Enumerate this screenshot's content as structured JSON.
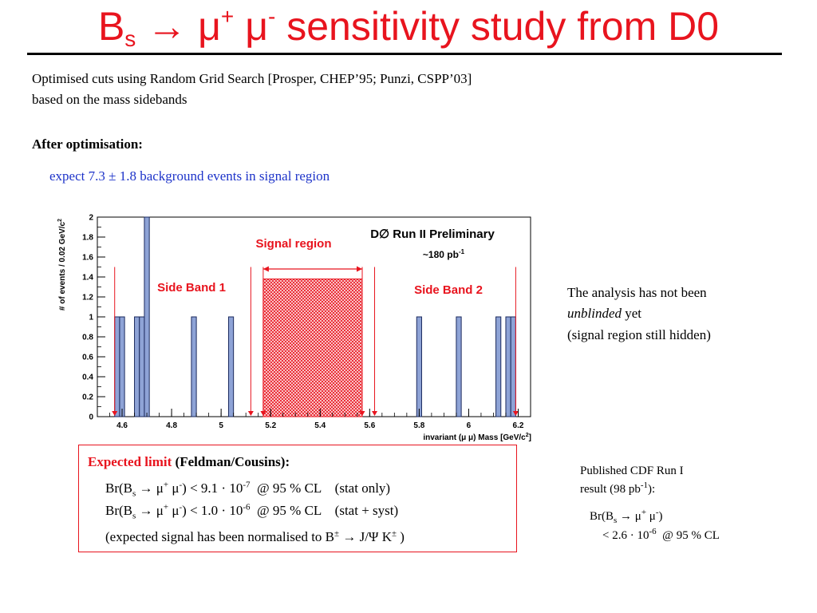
{
  "slide": {
    "title": {
      "b": "B",
      "s": "s",
      "arrow": "→",
      "mu_plus": "μ",
      "plus": "+",
      "mu_minus": "μ",
      "minus": "-",
      "rest": "sensitivity study from D0"
    },
    "intro_line1": "Optimised cuts using Random Grid Search [Prosper, CHEP’95; Punzi, CSPP’03]",
    "intro_line2": "based on the mass sidebands",
    "after_heading": "After optimisation:",
    "expect_line": "expect 7.3 ± 1.8 background events in signal region",
    "analysis_note": {
      "line1": "The analysis has not been",
      "line2_italic": "unblinded",
      "line2_rest": " yet",
      "line3": "(signal region still hidden)"
    },
    "expected_limit": {
      "label": "Expected limit",
      "method": "(Feldman/Cousins):",
      "row1": {
        "pre": "Br(B",
        "sub": "s",
        "mid": " → μ",
        "plus": "+",
        "mid2": " μ",
        "minus": "-",
        "post": ") < 9.1 · 10",
        "exp": "-7",
        "tail": "  @ 95 % CL    (stat only)"
      },
      "row2": {
        "pre": "Br(B",
        "sub": "s",
        "mid": " → μ",
        "plus": "+",
        "mid2": " μ",
        "minus": "-",
        "post": ") < 1.0 · 10",
        "exp": "-6",
        "tail": "  @ 95 % CL    (stat + syst)"
      },
      "row3": {
        "pre": "(expected signal has been normalised to B",
        "pm1": "±",
        "mid": " → J/Ψ K",
        "pm2": "±",
        "post": " )"
      }
    },
    "cdf": {
      "line1": "Published CDF Run I",
      "line2_pre": "result (98 pb",
      "line2_exp": "-1",
      "line2_post": "):",
      "br": {
        "pre": "Br(B",
        "sub": "s",
        "mid": " → μ",
        "plus": "+",
        "mid2": " μ",
        "minus": "-",
        "post": ")"
      },
      "limit": {
        "pre": "< 2.6 · 10",
        "exp": "-6",
        "post": "  @ 95 % CL"
      }
    }
  },
  "chart_data": {
    "type": "bar",
    "ylabel": "# of events / 0.02 GeV/c",
    "ylabel_exp": "2",
    "xlabel": "invariant (μ μ) Mass [GeV/c",
    "xlabel_exp": "2",
    "xlabel_close": "]",
    "xlim": [
      4.5,
      6.25
    ],
    "ylim": [
      0,
      2
    ],
    "xticks": [
      "4.6",
      "4.8",
      "5",
      "5.2",
      "5.4",
      "5.6",
      "5.8",
      "6",
      "6.2"
    ],
    "yticks": [
      "0",
      "0.2",
      "0.4",
      "0.6",
      "0.8",
      "1",
      "1.2",
      "1.4",
      "1.6",
      "1.8",
      "2"
    ],
    "bin_width": 0.02,
    "bins": [
      {
        "x0": 4.57,
        "value": 1
      },
      {
        "x0": 4.59,
        "value": 1
      },
      {
        "x0": 4.65,
        "value": 1
      },
      {
        "x0": 4.67,
        "value": 1
      },
      {
        "x0": 4.69,
        "value": 2
      },
      {
        "x0": 4.88,
        "value": 1
      },
      {
        "x0": 5.03,
        "value": 1
      },
      {
        "x0": 5.79,
        "value": 1
      },
      {
        "x0": 5.95,
        "value": 1
      },
      {
        "x0": 6.11,
        "value": 1
      },
      {
        "x0": 6.15,
        "value": 1
      },
      {
        "x0": 6.17,
        "value": 1
      }
    ],
    "signal_region": {
      "x0": 5.17,
      "x1": 5.57,
      "height": 1.38,
      "label": "Signal region"
    },
    "sidebands": [
      {
        "label": "Side Band 1"
      },
      {
        "label": "Side Band 2"
      }
    ],
    "cut_markers": [
      4.57,
      5.12,
      5.17,
      5.57,
      5.62,
      6.19
    ],
    "experiment_label": "D∅  Run II Preliminary",
    "lumi": {
      "pre": "~180 pb",
      "exp": "-1"
    },
    "colors": {
      "bar_fill": "#8ea3d6",
      "bar_stroke": "#1b2a5e",
      "signal": "#e8141e",
      "sideband_text": "#e8141e"
    }
  }
}
